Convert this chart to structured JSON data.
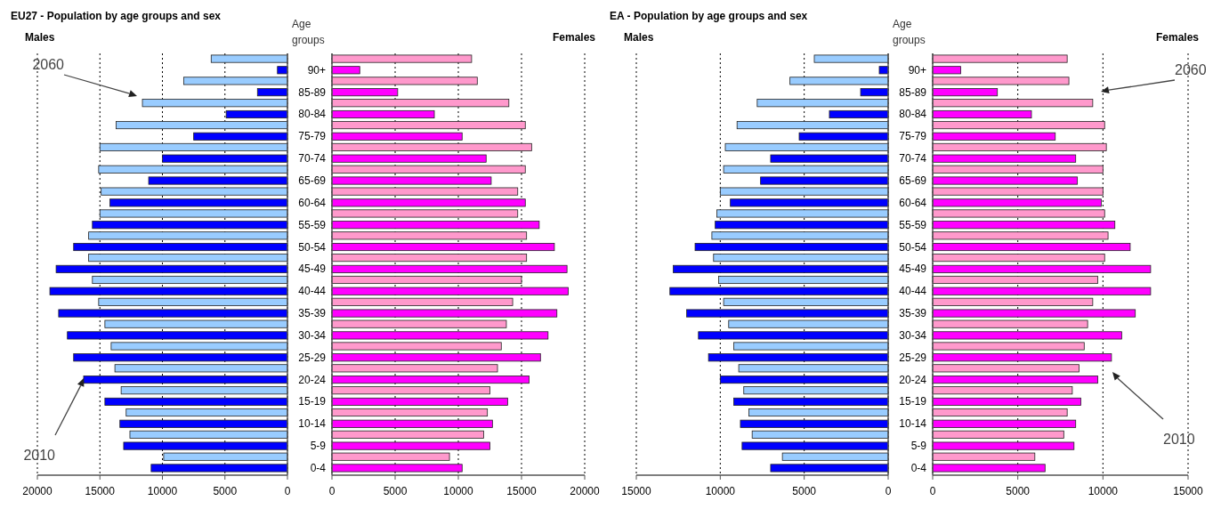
{
  "chart_data": [
    {
      "type": "bar",
      "orientation": "horizontal",
      "title": "EU27 - Population by age groups and sex",
      "subtitle": "Males",
      "categories": [
        null,
        null,
        null,
        null,
        null,
        null,
        null,
        null,
        null,
        null,
        null,
        null,
        null,
        null,
        null,
        null,
        null,
        null,
        null
      ],
      "series": [
        {
          "color": "#99ccff",
          "values": [
            6100,
            8300,
            11600,
            13700,
            15000,
            15100,
            14900,
            15000,
            15900,
            15900,
            15600,
            15100,
            14600,
            14100,
            13800,
            13300,
            12900,
            12600,
            9900
          ]
        },
        {
          "color": "#0000ff",
          "values": [
            800,
            2400,
            4900,
            7500,
            10000,
            11100,
            14200,
            15600,
            17100,
            18500,
            19000,
            18300,
            17600,
            17100,
            16300,
            14600,
            13400,
            13100,
            10900
          ]
        }
      ],
      "xlim": [
        20000,
        0
      ],
      "xticks": [
        20000,
        15000,
        10000,
        5000,
        0
      ],
      "grid": "x",
      "annotations": [
        "2060",
        "2010"
      ]
    },
    {
      "type": "bar",
      "orientation": "horizontal",
      "subtitle": "Females",
      "ylabel": "Age groups",
      "categories": [
        "90+",
        "85-89",
        "80-84",
        "75-79",
        "70-74",
        "65-69",
        "60-64",
        "55-59",
        "50-54",
        "45-49",
        "40-44",
        "35-39",
        "30-34",
        "25-29",
        "20-24",
        "15-19",
        "10-14",
        "5-9",
        "0-4"
      ],
      "series": [
        {
          "color": "#ff99cc",
          "values": [
            11050,
            11500,
            14000,
            15300,
            15800,
            15300,
            14700,
            14700,
            15400,
            15400,
            15000,
            14300,
            13800,
            13400,
            13100,
            12500,
            12300,
            12000,
            9300
          ]
        },
        {
          "color": "#ff00ff",
          "values": [
            2200,
            5200,
            8100,
            10300,
            12200,
            12600,
            15300,
            16400,
            17600,
            18600,
            18700,
            17800,
            17100,
            16500,
            15600,
            13900,
            12700,
            12500,
            10300
          ]
        }
      ],
      "xlim": [
        0,
        20000
      ],
      "xticks": [
        0,
        5000,
        10000,
        15000,
        20000
      ],
      "grid": "x"
    },
    {
      "type": "bar",
      "orientation": "horizontal",
      "title": "EA - Population by age groups and sex",
      "subtitle": "Males",
      "categories": [
        null,
        null,
        null,
        null,
        null,
        null,
        null,
        null,
        null,
        null,
        null,
        null,
        null,
        null,
        null,
        null,
        null,
        null,
        null
      ],
      "series": [
        {
          "color": "#99ccff",
          "values": [
            4400,
            5850,
            7800,
            9000,
            9700,
            9800,
            10000,
            10200,
            10500,
            10400,
            10100,
            9800,
            9500,
            9200,
            8900,
            8600,
            8300,
            8100,
            6300
          ]
        },
        {
          "color": "#0000ff",
          "values": [
            530,
            1640,
            3500,
            5300,
            7000,
            7600,
            9400,
            10300,
            11500,
            12800,
            13000,
            12000,
            11300,
            10700,
            10000,
            9200,
            8800,
            8700,
            7000
          ]
        }
      ],
      "xlim": [
        15000,
        0
      ],
      "xticks": [
        15000,
        10000,
        5000,
        0
      ],
      "grid": "x"
    },
    {
      "type": "bar",
      "orientation": "horizontal",
      "subtitle": "Females",
      "ylabel": "Age groups",
      "categories": [
        "90+",
        "85-89",
        "80-84",
        "75-79",
        "70-74",
        "65-69",
        "60-64",
        "55-59",
        "50-54",
        "45-49",
        "40-44",
        "35-39",
        "30-34",
        "25-29",
        "20-24",
        "15-19",
        "10-14",
        "5-9",
        "0-4"
      ],
      "series": [
        {
          "color": "#ff99cc",
          "values": [
            7900,
            8000,
            9400,
            10100,
            10200,
            10000,
            10000,
            10100,
            10300,
            10100,
            9700,
            9400,
            9100,
            8900,
            8600,
            8200,
            7900,
            7700,
            6000
          ]
        },
        {
          "color": "#ff00ff",
          "values": [
            1650,
            3800,
            5800,
            7200,
            8400,
            8500,
            9900,
            10700,
            11600,
            12800,
            12800,
            11900,
            11100,
            10500,
            9700,
            8700,
            8400,
            8300,
            6600
          ]
        }
      ],
      "xlim": [
        0,
        15000
      ],
      "xticks": [
        0,
        5000,
        10000,
        15000
      ],
      "grid": "x",
      "annotations": [
        "2060",
        "2010"
      ]
    }
  ]
}
